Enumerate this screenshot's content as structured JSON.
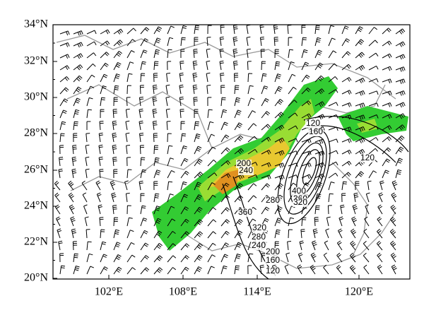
{
  "map": {
    "lat_labels": [
      "34°N",
      "32°N",
      "30°N",
      "28°N",
      "26°N",
      "24°N",
      "22°N",
      "20°N"
    ],
    "lon_labels": [
      "102°E",
      "108°E",
      "114°E",
      "120°E"
    ],
    "contour_labels": [
      "120",
      "160",
      "120",
      "200",
      "240",
      "400",
      "360",
      "320",
      "280",
      "360",
      "320",
      "280",
      "240",
      "200",
      "160",
      "120"
    ]
  }
}
